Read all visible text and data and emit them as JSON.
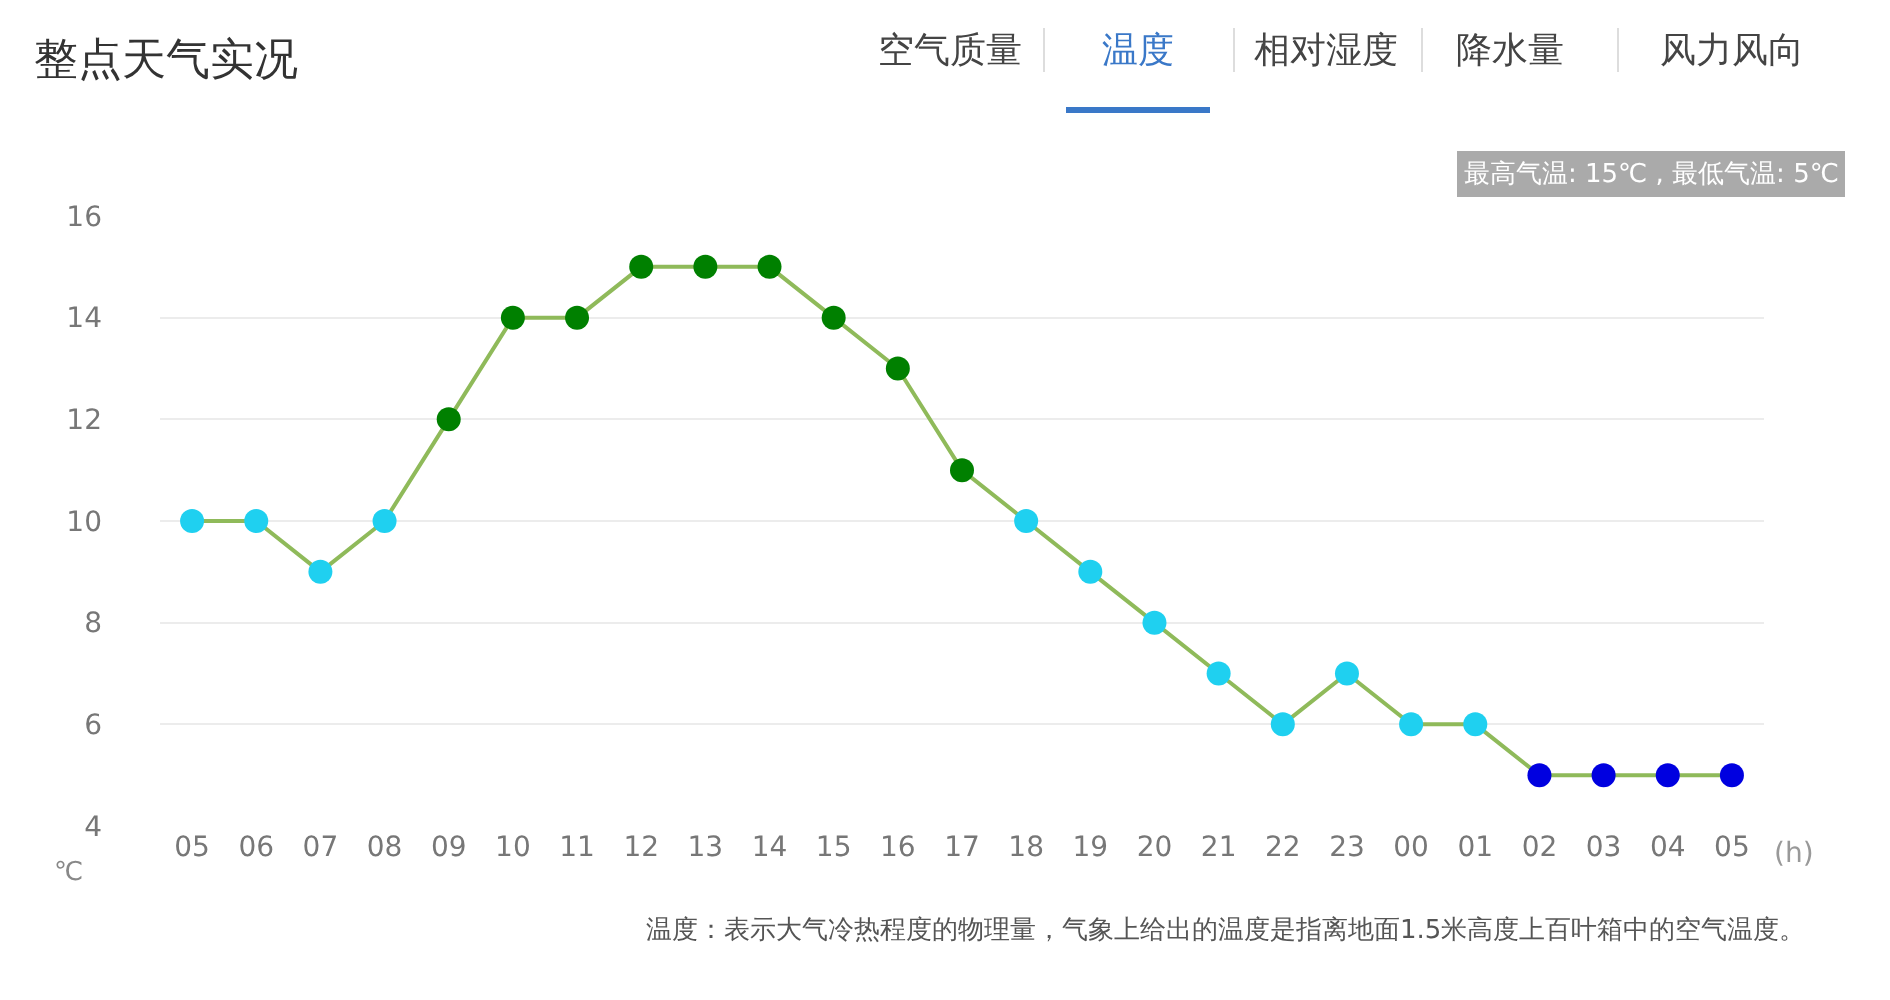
{
  "chart_data": {
    "type": "line",
    "title": "整点天气实况",
    "xlabel": "(h)",
    "ylabel": "℃",
    "categories": [
      "05",
      "06",
      "07",
      "08",
      "09",
      "10",
      "11",
      "12",
      "13",
      "14",
      "15",
      "16",
      "17",
      "18",
      "19",
      "20",
      "21",
      "22",
      "23",
      "00",
      "01",
      "02",
      "03",
      "04",
      "05"
    ],
    "series": [
      {
        "color": "#8fba5a",
        "values": [
          10,
          10,
          9,
          10,
          12,
          14,
          14,
          15,
          15,
          15,
          14,
          13,
          11,
          10,
          9,
          8,
          7,
          6,
          7,
          6,
          6,
          5,
          5,
          5,
          5
        ],
        "colors": [
          "#1fd0f0",
          "#1fd0f0",
          "#1fd0f0",
          "#1fd0f0",
          "#008000",
          "#008000",
          "#008000",
          "#008000",
          "#008000",
          "#008000",
          "#008000",
          "#008000",
          "#008000",
          "#1fd0f0",
          "#1fd0f0",
          "#1fd0f0",
          "#1fd0f0",
          "#1fd0f0",
          "#1fd0f0",
          "#1fd0f0",
          "#1fd0f0",
          "#0000e0",
          "#0000e0",
          "#0000e0",
          "#0000e0"
        ]
      }
    ],
    "ylim": [
      4,
      16
    ],
    "yticks": [
      4,
      6,
      8,
      10,
      12,
      14,
      16
    ],
    "grid": "y",
    "marker": "circle",
    "line_style": "solid",
    "legend": false,
    "annotations": [
      "空气质量",
      "温度",
      "相对湿度",
      "降水量",
      "风力风向",
      "最高气温: 15℃ , 最低气温: 5℃",
      "温度：表示大气冷热程度的物理量，气象上给出的温度是指离地面1.5米高度上百叶箱中的空气温度。"
    ]
  }
}
